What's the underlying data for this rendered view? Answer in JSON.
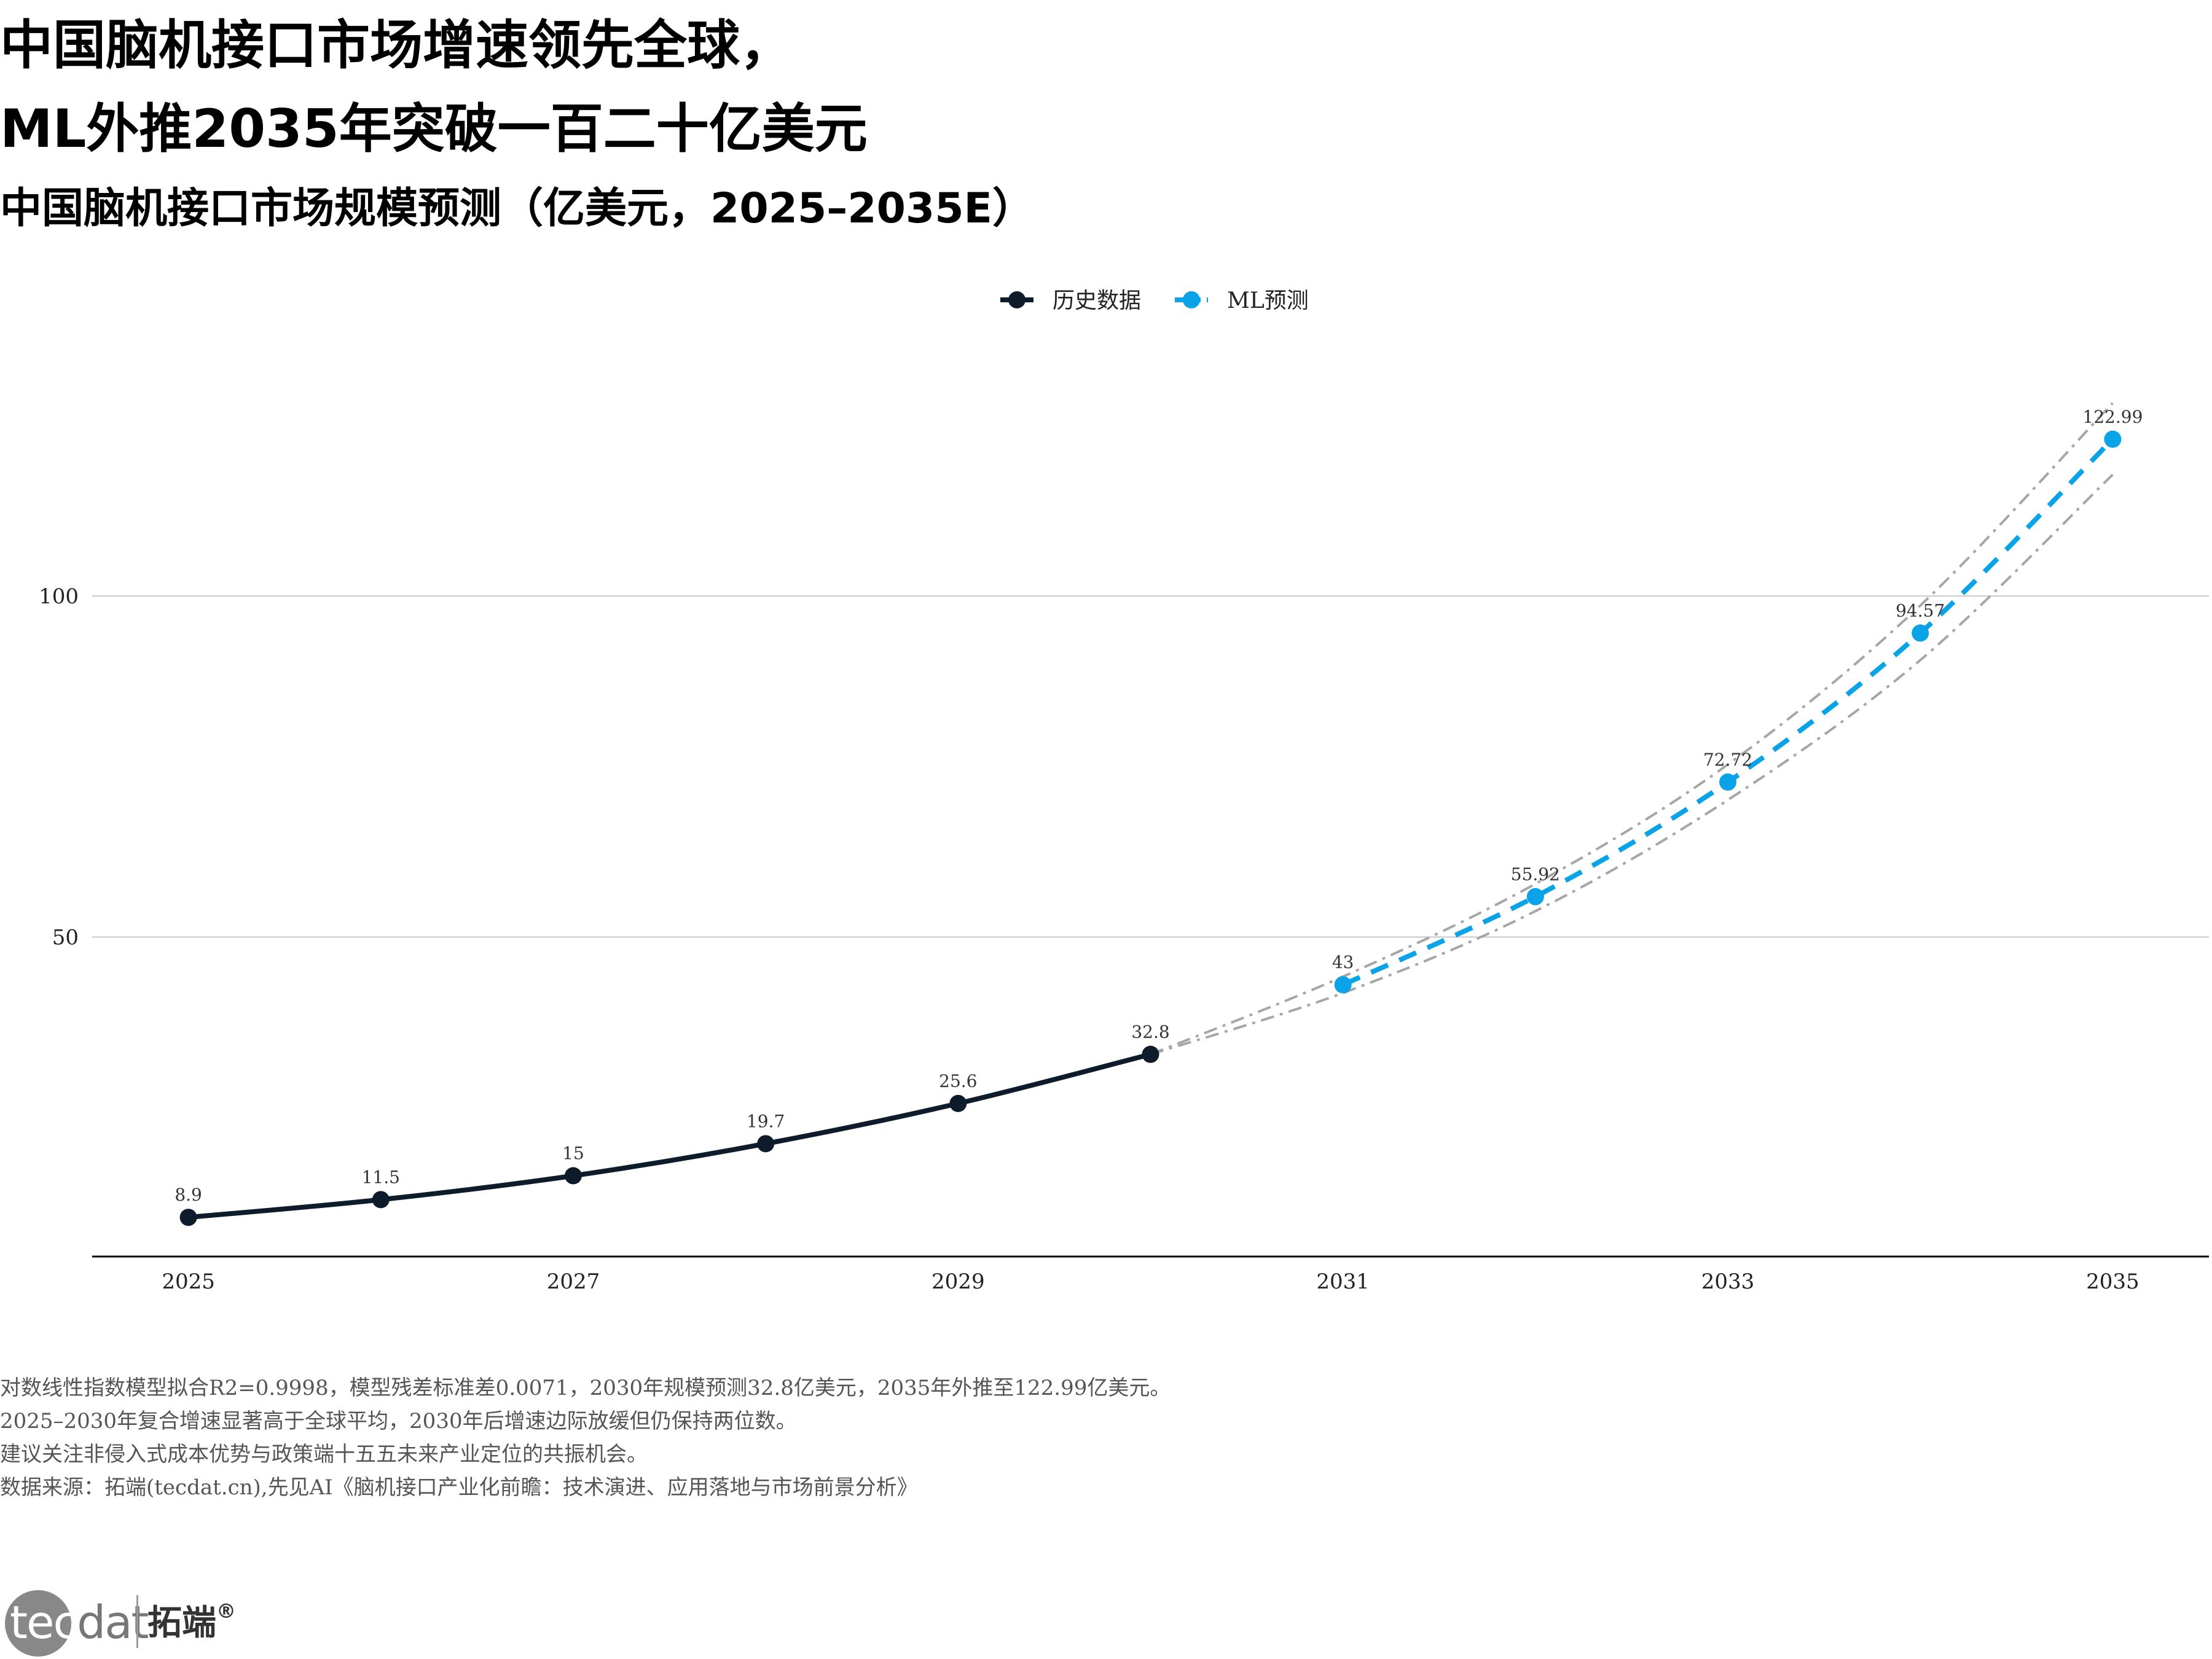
{
  "header": {
    "title_line1": "中国脑机接口市场增速领先全球，",
    "title_line2": "ML外推2035年突破一百二十亿美元",
    "subtitle": "中国脑机接口市场规模预测（亿美元，2025–2035E）"
  },
  "chart_data": {
    "type": "line",
    "x_ticks": [
      "2025",
      "2027",
      "2029",
      "2031",
      "2033",
      "2035"
    ],
    "y_ticks": [
      "50",
      "100"
    ],
    "xlim": [
      2024.5,
      2035.5
    ],
    "ylim": [
      3.3,
      122.99
    ],
    "grid": "horizontal",
    "legend_position": "top-center",
    "series": [
      {
        "name": "历史数据",
        "color": "#0d1b2a",
        "line_style": "solid",
        "x": [
          2025,
          2026,
          2027,
          2028,
          2029,
          2030
        ],
        "values": [
          8.9,
          11.5,
          15,
          19.7,
          25.6,
          32.8
        ],
        "labels": [
          "8.9",
          "11.5",
          "15",
          "19.7",
          "25.6",
          "32.8"
        ]
      },
      {
        "name": "ML预测",
        "color": "#0aa3e8",
        "line_style": "dashed",
        "x": [
          2031,
          2032,
          2033,
          2034,
          2035
        ],
        "values": [
          43,
          55.92,
          72.72,
          94.57,
          122.99
        ],
        "labels": [
          "43",
          "55.92",
          "72.72",
          "94.57",
          "122.99"
        ]
      }
    ],
    "confidence_band": {
      "color": "#a6a6a6",
      "line_style": "dash-dot",
      "x": [
        2030,
        2031,
        2032,
        2033,
        2034,
        2035
      ],
      "upper": [
        32.8,
        44.2,
        57.8,
        75.3,
        98.6,
        128.3
      ],
      "lower": [
        32.8,
        41.8,
        53.8,
        70.1,
        90.6,
        117.8
      ]
    }
  },
  "notes": [
    "对数线性指数模型拟合R2=0.9998，模型残差标准差0.0071，2030年规模预测32.8亿美元，2035年外推至122.99亿美元。",
    "2025–2030年复合增速显著高于全球平均，2030年后增速边际放缓但仍保持两位数。",
    "建议关注非侵入式成本优势与政策端十五五未来产业定位的共振机会。",
    "数据来源：拓端(tecdat.cn),先见AI《脑机接口产业化前瞻：技术演进、应用落地与市场前景分析》"
  ],
  "logo": {
    "tec": "tec",
    "dat": "dat",
    "cn": "拓端",
    "reg": "®"
  }
}
